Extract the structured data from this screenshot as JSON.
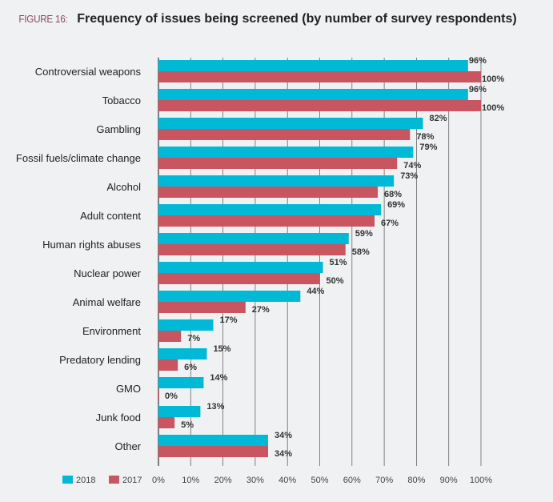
{
  "figure_label": "FIGURE 16:",
  "title": "Frequency of issues being screened (by number of survey respondents)",
  "colors": {
    "2018": "#00b9d6",
    "2017": "#c8555f",
    "background": "#f0f1f3"
  },
  "chart_data": {
    "type": "bar",
    "orientation": "horizontal",
    "title": "Frequency of issues being screened (by number of survey respondents)",
    "categories": [
      "Controversial weapons",
      "Tobacco",
      "Gambling",
      "Fossil fuels/climate change",
      "Alcohol",
      "Adult content",
      "Human rights abuses",
      "Nuclear power",
      "Animal welfare",
      "Environment",
      "Predatory lending",
      "GMO",
      "Junk food",
      "Other"
    ],
    "series": [
      {
        "name": "2018",
        "values": [
          96,
          96,
          82,
          79,
          73,
          69,
          59,
          51,
          44,
          17,
          15,
          14,
          13,
          34
        ]
      },
      {
        "name": "2017",
        "values": [
          100,
          100,
          78,
          74,
          68,
          67,
          58,
          50,
          27,
          7,
          6,
          0,
          5,
          34
        ]
      }
    ],
    "xlim": [
      0,
      100
    ],
    "xticks": [
      "0%",
      "10%",
      "20%",
      "30%",
      "40%",
      "50%",
      "60%",
      "70%",
      "80%",
      "90%",
      "100%"
    ],
    "grid": true,
    "legend": "bottom-left"
  }
}
